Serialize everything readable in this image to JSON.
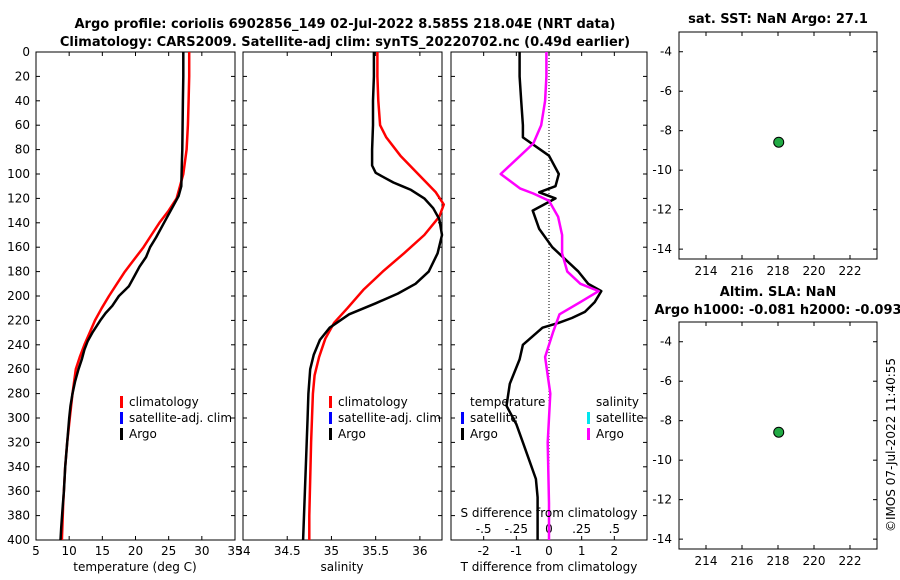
{
  "header": {
    "title_line1": "Argo profile: coriolis 6902856_149 02-Jul-2022 8.585S 218.04E (NRT data)",
    "title_line2": "Climatology: CARS2009. Satellite-adj clim: synTS_20220702.nc (0.49d earlier)"
  },
  "colors": {
    "climatology": "#ff0000",
    "satellite_adj": "#0000ff",
    "argo": "#000000",
    "satellite_salinity": "#00e5ee",
    "argo_salinity": "#ff00ff",
    "marker": "#22aa44"
  },
  "chart_data": [
    {
      "id": "temperature",
      "type": "line",
      "xlabel": "temperature (deg C)",
      "xlim": [
        5,
        35
      ],
      "xticks": [
        5,
        10,
        15,
        20,
        25,
        30,
        35
      ],
      "ylim": [
        0,
        400
      ],
      "yticks": [
        0,
        20,
        40,
        60,
        80,
        100,
        120,
        140,
        160,
        180,
        200,
        220,
        240,
        260,
        280,
        300,
        320,
        340,
        360,
        380,
        400
      ],
      "legend": [
        "climatology",
        "satellite-adj. clim",
        "Argo"
      ],
      "series": [
        {
          "name": "climatology",
          "color": "#ff0000",
          "x": [
            28.1,
            28.1,
            28.0,
            27.9,
            27.7,
            27.2,
            26.2,
            25.0,
            23.6,
            22.4,
            21.2,
            19.8,
            18.4,
            17.2,
            16.0,
            14.9,
            13.9,
            13.1,
            12.3,
            11.6,
            11.0,
            10.5,
            10.1,
            9.7,
            9.4,
            9.1,
            8.9
          ],
          "y": [
            0,
            20,
            40,
            60,
            80,
            100,
            120,
            130,
            140,
            150,
            160,
            170,
            180,
            190,
            200,
            210,
            220,
            230,
            240,
            250,
            260,
            280,
            300,
            320,
            340,
            370,
            400
          ]
        },
        {
          "name": "Argo",
          "color": "#000000",
          "x": [
            27.2,
            27.2,
            27.15,
            27.1,
            27.05,
            27.0,
            26.95,
            26.9,
            26.5,
            25.5,
            24.3,
            23.1,
            22.2,
            21.6,
            20.6,
            19.8,
            19.0,
            17.5,
            16.5,
            15.5,
            14.7,
            13.5,
            12.8,
            12.3,
            11.9,
            11.4,
            10.9,
            10.5,
            10.2,
            10.0,
            9.7,
            9.4,
            9.2,
            9.0,
            8.8,
            8.7
          ],
          "y": [
            0,
            20,
            40,
            60,
            80,
            90,
            100,
            110,
            118,
            128,
            140,
            152,
            160,
            168,
            176,
            184,
            192,
            200,
            208,
            214,
            220,
            230,
            237,
            244,
            252,
            260,
            270,
            280,
            290,
            300,
            320,
            340,
            360,
            375,
            390,
            400
          ]
        }
      ]
    },
    {
      "id": "salinity",
      "type": "line",
      "xlabel": "salinity",
      "xlim": [
        34,
        36.25
      ],
      "xticks": [
        34,
        34.5,
        35,
        35.5,
        36
      ],
      "ylim": [
        0,
        400
      ],
      "legend": [
        "climatology",
        "satellite-adj. clim",
        "Argo"
      ],
      "series": [
        {
          "name": "climatology",
          "color": "#ff0000",
          "x": [
            35.52,
            35.52,
            35.53,
            35.55,
            35.62,
            35.78,
            35.98,
            36.18,
            36.27,
            36.22,
            36.05,
            35.82,
            35.58,
            35.36,
            35.18,
            35.03,
            34.93,
            34.86,
            34.81,
            34.79,
            34.78,
            34.77,
            34.76,
            34.75,
            34.75
          ],
          "y": [
            0,
            20,
            40,
            60,
            70,
            85,
            100,
            115,
            125,
            135,
            150,
            165,
            180,
            195,
            210,
            222,
            235,
            250,
            265,
            280,
            300,
            320,
            350,
            380,
            400
          ]
        },
        {
          "name": "Argo",
          "color": "#000000",
          "x": [
            35.48,
            35.48,
            35.47,
            35.47,
            35.46,
            35.46,
            35.5,
            35.6,
            35.7,
            35.8,
            35.9,
            36.05,
            36.15,
            36.22,
            36.25,
            36.2,
            36.1,
            35.95,
            35.75,
            35.5,
            35.2,
            34.98,
            34.87,
            34.8,
            34.76,
            34.74,
            34.73,
            34.72,
            34.71,
            34.7,
            34.69,
            34.68
          ],
          "y": [
            0,
            20,
            40,
            60,
            80,
            93,
            99,
            103,
            107,
            110,
            113,
            120,
            128,
            137,
            150,
            165,
            180,
            190,
            198,
            206,
            215,
            226,
            236,
            248,
            260,
            280,
            300,
            320,
            340,
            360,
            380,
            400
          ]
        }
      ]
    },
    {
      "id": "difference",
      "type": "line",
      "xlabel": "T difference from climatology",
      "xlim": [
        -3,
        3
      ],
      "xticks": [
        -2,
        -1,
        0,
        1,
        2
      ],
      "s_label": "S difference from climatology",
      "s_xlim": [
        -0.75,
        0.75
      ],
      "s_ticks": [
        -0.5,
        -0.25,
        0,
        0.25,
        0.5
      ],
      "ylim": [
        0,
        400
      ],
      "legend_temperature": {
        "title": "temperature",
        "entries": [
          "satellite",
          "Argo"
        ]
      },
      "legend_salinity": {
        "title": "salinity",
        "entries": [
          "satellite",
          "Argo"
        ]
      },
      "series": [
        {
          "name": "T Argo - clim",
          "color": "#000000",
          "x": [
            -0.9,
            -0.9,
            -0.85,
            -0.8,
            -0.8,
            0.0,
            0.3,
            0.2,
            -0.3,
            0.2,
            -0.5,
            -0.3,
            0.1,
            0.9,
            1.2,
            1.6,
            1.4,
            1.1,
            0.7,
            0.3,
            -0.2,
            -0.8,
            -0.9,
            -1.2,
            -1.3,
            -1.0,
            -0.8,
            -0.6,
            -0.4,
            -0.35,
            -0.35,
            -0.35
          ],
          "y": [
            0,
            20,
            40,
            60,
            70,
            85,
            100,
            110,
            115,
            120,
            130,
            145,
            160,
            180,
            190,
            196,
            205,
            213,
            218,
            222,
            226,
            240,
            252,
            272,
            290,
            305,
            320,
            335,
            350,
            365,
            385,
            400
          ]
        },
        {
          "name": "S Argo - clim",
          "color": "#ff00ff",
          "x": [
            -0.02,
            -0.02,
            -0.03,
            -0.06,
            -0.12,
            -0.25,
            -0.37,
            -0.22,
            -0.12,
            0.0,
            0.07,
            0.1,
            0.1,
            0.14,
            0.24,
            0.38,
            0.24,
            0.08,
            0.03,
            -0.03,
            0.01,
            -0.01,
            0.0,
            0.0
          ],
          "y": [
            0,
            20,
            40,
            60,
            75,
            88,
            100,
            112,
            116,
            122,
            135,
            150,
            165,
            180,
            190,
            196,
            205,
            215,
            230,
            250,
            280,
            320,
            370,
            400
          ]
        }
      ]
    },
    {
      "id": "sst_map",
      "type": "scatter",
      "title": "sat. SST: NaN Argo: 27.1",
      "xlim": [
        212.5,
        223.5
      ],
      "xticks": [
        214,
        216,
        218,
        220,
        222
      ],
      "ylim": [
        -14.5,
        -3
      ],
      "yticks": [
        -4,
        -6,
        -8,
        -10,
        -12,
        -14
      ],
      "points": [
        {
          "x": 218.04,
          "y": -8.585
        }
      ]
    },
    {
      "id": "sla_map",
      "type": "scatter",
      "title": "Altim. SLA: NaN",
      "subtitle": "Argo h1000: -0.081 h2000: -0.093",
      "xlim": [
        212.5,
        223.5
      ],
      "xticks": [
        214,
        216,
        218,
        220,
        222
      ],
      "ylim": [
        -14.5,
        -3
      ],
      "yticks": [
        -4,
        -6,
        -8,
        -10,
        -12,
        -14
      ],
      "points": [
        {
          "x": 218.04,
          "y": -8.585
        }
      ]
    }
  ],
  "footer": {
    "stamp": "©IMOS 07-Jul-2022 11:40:55"
  }
}
